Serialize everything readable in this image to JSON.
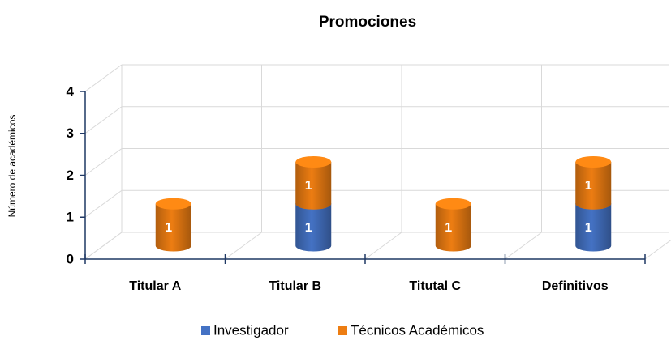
{
  "chart_data": {
    "type": "bar3d-stacked",
    "title": "Promociones",
    "ylabel": "Número de académicos",
    "categories": [
      "Titular A",
      "Titular B",
      "Titutal C",
      "Definitivos"
    ],
    "series": [
      {
        "name": "Investigador",
        "color": "#4472c4",
        "values": [
          null,
          1,
          null,
          1
        ]
      },
      {
        "name": "Técnicos Académicos",
        "color": "#ed7d12",
        "values": [
          1,
          1,
          1,
          1
        ]
      }
    ],
    "ylim": [
      0,
      4
    ],
    "yticks": [
      0,
      1,
      2,
      3,
      4
    ],
    "grid": true,
    "legend": "bottom"
  }
}
